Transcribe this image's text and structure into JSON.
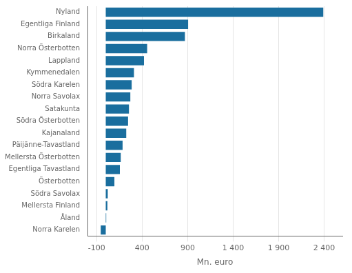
{
  "chart_data": {
    "type": "bar",
    "orientation": "horizontal",
    "categories": [
      "Norra Karelen",
      "Åland",
      "Mellersta Finland",
      "Södra Savolax",
      "Österbotten",
      "Egentliga Tavastland",
      "Mellersta Österbotten",
      "Päijänne-Tavastland",
      "Kajanaland",
      "Södra Österbotten",
      "Satakunta",
      "Norra Savolax",
      "Södra Karelen",
      "Kymmenedalen",
      "Lappland",
      "Norra Österbotten",
      "Birkaland",
      "Egentliga Finland",
      "Nyland"
    ],
    "values": [
      -55,
      5,
      18,
      22,
      95,
      155,
      165,
      185,
      225,
      245,
      255,
      270,
      285,
      310,
      420,
      455,
      870,
      905,
      2390
    ],
    "color": "#1a6e9e",
    "xlabel": "Mn. euro",
    "xlim": [
      -200,
      2600
    ],
    "xticks": [
      -100,
      400,
      900,
      {
        "value": 1400,
        "label": "1 400"
      },
      {
        "value": 1900,
        "label": "1 900"
      },
      {
        "value": 2400,
        "label": "2 400"
      }
    ],
    "grid": true
  }
}
